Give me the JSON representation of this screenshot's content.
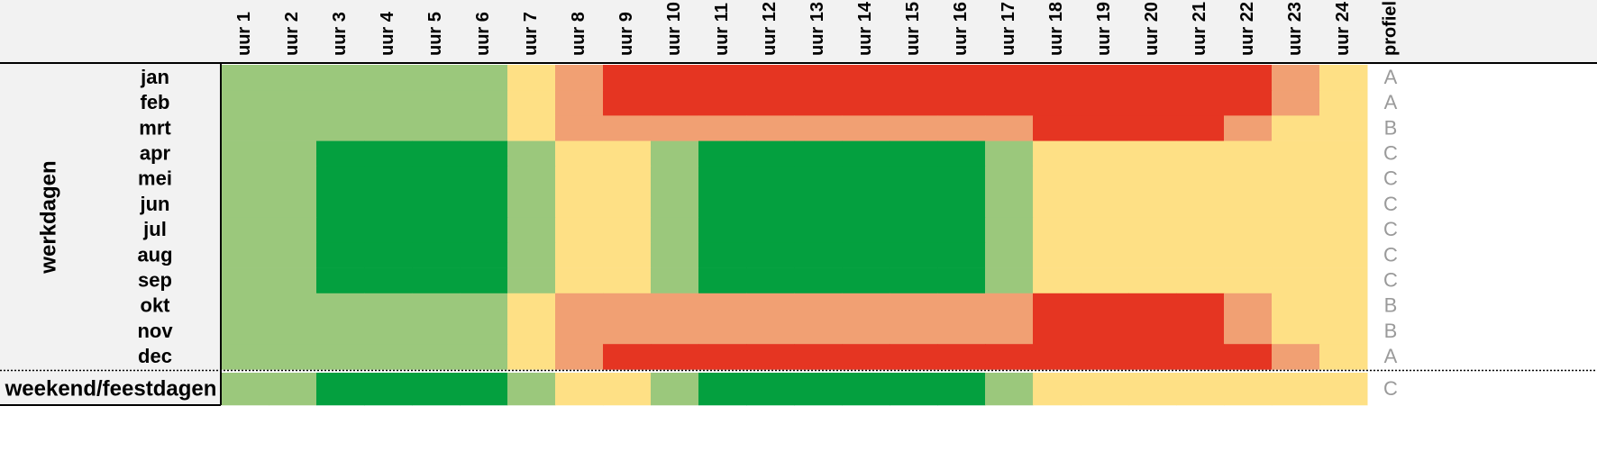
{
  "header": {
    "columns": [
      "uur 1",
      "uur 2",
      "uur 3",
      "uur 4",
      "uur 5",
      "uur 6",
      "uur 7",
      "uur 8",
      "uur 9",
      "uur 10",
      "uur 11",
      "uur 12",
      "uur 13",
      "uur 14",
      "uur 15",
      "uur 16",
      "uur 17",
      "uur 18",
      "uur 19",
      "uur 20",
      "uur 21",
      "uur 22",
      "uur 23",
      "uur 24"
    ],
    "profile": "profiel"
  },
  "group_label": "werkdagen",
  "rows": [
    {
      "label": "jan",
      "profile": "A",
      "colors": [
        "#9bc87c",
        "#9bc87c",
        "#9bc87c",
        "#9bc87c",
        "#9bc87c",
        "#9bc87c",
        "#fee085",
        "#f1a073",
        "#e53522",
        "#e53522",
        "#e53522",
        "#e53522",
        "#e53522",
        "#e53522",
        "#e53522",
        "#e53522",
        "#e53522",
        "#e53522",
        "#e53522",
        "#e53522",
        "#e53522",
        "#e53522",
        "#f1a073",
        "#fee085"
      ]
    },
    {
      "label": "feb",
      "profile": "A",
      "colors": [
        "#9bc87c",
        "#9bc87c",
        "#9bc87c",
        "#9bc87c",
        "#9bc87c",
        "#9bc87c",
        "#fee085",
        "#f1a073",
        "#e53522",
        "#e53522",
        "#e53522",
        "#e53522",
        "#e53522",
        "#e53522",
        "#e53522",
        "#e53522",
        "#e53522",
        "#e53522",
        "#e53522",
        "#e53522",
        "#e53522",
        "#e53522",
        "#f1a073",
        "#fee085"
      ]
    },
    {
      "label": "mrt",
      "profile": "B",
      "colors": [
        "#9bc87c",
        "#9bc87c",
        "#9bc87c",
        "#9bc87c",
        "#9bc87c",
        "#9bc87c",
        "#fee085",
        "#f1a073",
        "#f1a073",
        "#f1a073",
        "#f1a073",
        "#f1a073",
        "#f1a073",
        "#f1a073",
        "#f1a073",
        "#f1a073",
        "#f1a073",
        "#e53522",
        "#e53522",
        "#e53522",
        "#e53522",
        "#f1a073",
        "#fee085",
        "#fee085"
      ]
    },
    {
      "label": "apr",
      "profile": "C",
      "colors": [
        "#9bc87c",
        "#9bc87c",
        "#04a03f",
        "#04a03f",
        "#04a03f",
        "#04a03f",
        "#9bc87c",
        "#fee085",
        "#fee085",
        "#9bc87c",
        "#04a03f",
        "#04a03f",
        "#04a03f",
        "#04a03f",
        "#04a03f",
        "#04a03f",
        "#9bc87c",
        "#fee085",
        "#fee085",
        "#fee085",
        "#fee085",
        "#fee085",
        "#fee085",
        "#fee085"
      ]
    },
    {
      "label": "mei",
      "profile": "C",
      "colors": [
        "#9bc87c",
        "#9bc87c",
        "#04a03f",
        "#04a03f",
        "#04a03f",
        "#04a03f",
        "#9bc87c",
        "#fee085",
        "#fee085",
        "#9bc87c",
        "#04a03f",
        "#04a03f",
        "#04a03f",
        "#04a03f",
        "#04a03f",
        "#04a03f",
        "#9bc87c",
        "#fee085",
        "#fee085",
        "#fee085",
        "#fee085",
        "#fee085",
        "#fee085",
        "#fee085"
      ]
    },
    {
      "label": "jun",
      "profile": "C",
      "colors": [
        "#9bc87c",
        "#9bc87c",
        "#04a03f",
        "#04a03f",
        "#04a03f",
        "#04a03f",
        "#9bc87c",
        "#fee085",
        "#fee085",
        "#9bc87c",
        "#04a03f",
        "#04a03f",
        "#04a03f",
        "#04a03f",
        "#04a03f",
        "#04a03f",
        "#9bc87c",
        "#fee085",
        "#fee085",
        "#fee085",
        "#fee085",
        "#fee085",
        "#fee085",
        "#fee085"
      ]
    },
    {
      "label": "jul",
      "profile": "C",
      "colors": [
        "#9bc87c",
        "#9bc87c",
        "#04a03f",
        "#04a03f",
        "#04a03f",
        "#04a03f",
        "#9bc87c",
        "#fee085",
        "#fee085",
        "#9bc87c",
        "#04a03f",
        "#04a03f",
        "#04a03f",
        "#04a03f",
        "#04a03f",
        "#04a03f",
        "#9bc87c",
        "#fee085",
        "#fee085",
        "#fee085",
        "#fee085",
        "#fee085",
        "#fee085",
        "#fee085"
      ]
    },
    {
      "label": "aug",
      "profile": "C",
      "colors": [
        "#9bc87c",
        "#9bc87c",
        "#04a03f",
        "#04a03f",
        "#04a03f",
        "#04a03f",
        "#9bc87c",
        "#fee085",
        "#fee085",
        "#9bc87c",
        "#04a03f",
        "#04a03f",
        "#04a03f",
        "#04a03f",
        "#04a03f",
        "#04a03f",
        "#9bc87c",
        "#fee085",
        "#fee085",
        "#fee085",
        "#fee085",
        "#fee085",
        "#fee085",
        "#fee085"
      ]
    },
    {
      "label": "sep",
      "profile": "C",
      "colors": [
        "#9bc87c",
        "#9bc87c",
        "#04a03f",
        "#04a03f",
        "#04a03f",
        "#04a03f",
        "#9bc87c",
        "#fee085",
        "#fee085",
        "#9bc87c",
        "#04a03f",
        "#04a03f",
        "#04a03f",
        "#04a03f",
        "#04a03f",
        "#04a03f",
        "#9bc87c",
        "#fee085",
        "#fee085",
        "#fee085",
        "#fee085",
        "#fee085",
        "#fee085",
        "#fee085"
      ]
    },
    {
      "label": "okt",
      "profile": "B",
      "colors": [
        "#9bc87c",
        "#9bc87c",
        "#9bc87c",
        "#9bc87c",
        "#9bc87c",
        "#9bc87c",
        "#fee085",
        "#f1a073",
        "#f1a073",
        "#f1a073",
        "#f1a073",
        "#f1a073",
        "#f1a073",
        "#f1a073",
        "#f1a073",
        "#f1a073",
        "#f1a073",
        "#e53522",
        "#e53522",
        "#e53522",
        "#e53522",
        "#f1a073",
        "#fee085",
        "#fee085"
      ]
    },
    {
      "label": "nov",
      "profile": "B",
      "colors": [
        "#9bc87c",
        "#9bc87c",
        "#9bc87c",
        "#9bc87c",
        "#9bc87c",
        "#9bc87c",
        "#fee085",
        "#f1a073",
        "#f1a073",
        "#f1a073",
        "#f1a073",
        "#f1a073",
        "#f1a073",
        "#f1a073",
        "#f1a073",
        "#f1a073",
        "#f1a073",
        "#e53522",
        "#e53522",
        "#e53522",
        "#e53522",
        "#f1a073",
        "#fee085",
        "#fee085"
      ]
    },
    {
      "label": "dec",
      "profile": "A",
      "colors": [
        "#9bc87c",
        "#9bc87c",
        "#9bc87c",
        "#9bc87c",
        "#9bc87c",
        "#9bc87c",
        "#fee085",
        "#f1a073",
        "#e53522",
        "#e53522",
        "#e53522",
        "#e53522",
        "#e53522",
        "#e53522",
        "#e53522",
        "#e53522",
        "#e53522",
        "#e53522",
        "#e53522",
        "#e53522",
        "#e53522",
        "#e53522",
        "#f1a073",
        "#fee085"
      ]
    },
    {
      "label": "weekend/feestdagen",
      "profile": "C",
      "colors": [
        "#9bc87c",
        "#9bc87c",
        "#04a03f",
        "#04a03f",
        "#04a03f",
        "#04a03f",
        "#9bc87c",
        "#fee085",
        "#fee085",
        "#9bc87c",
        "#04a03f",
        "#04a03f",
        "#04a03f",
        "#04a03f",
        "#04a03f",
        "#04a03f",
        "#9bc87c",
        "#fee085",
        "#fee085",
        "#fee085",
        "#fee085",
        "#fee085",
        "#fee085",
        "#fee085"
      ]
    }
  ]
}
